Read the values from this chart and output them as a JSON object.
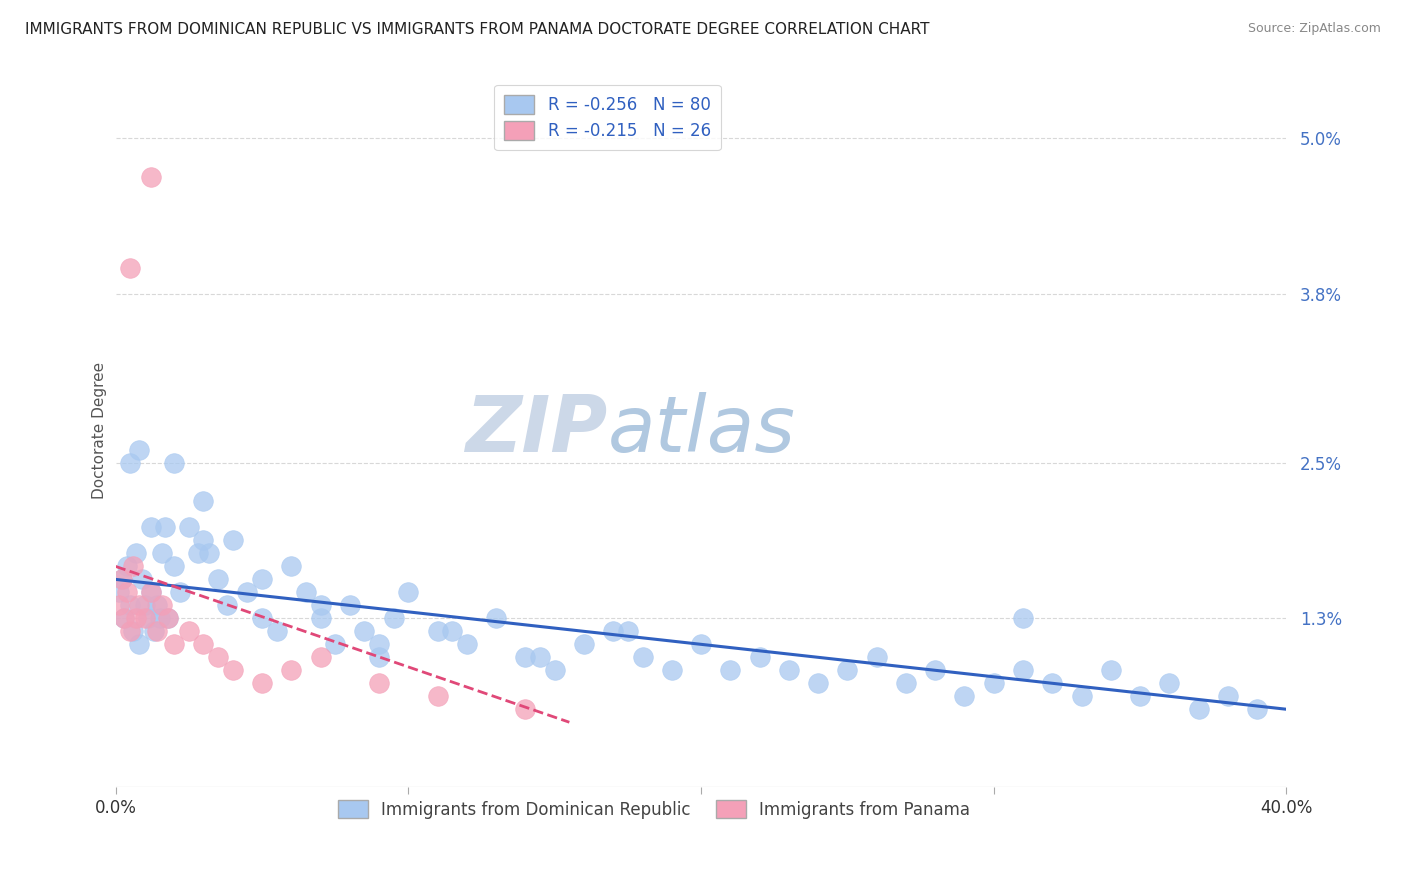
{
  "title": "IMMIGRANTS FROM DOMINICAN REPUBLIC VS IMMIGRANTS FROM PANAMA DOCTORATE DEGREE CORRELATION CHART",
  "source": "Source: ZipAtlas.com",
  "ylabel": "Doctorate Degree",
  "ytick_labels": [
    "",
    "1.3%",
    "2.5%",
    "3.8%",
    "5.0%"
  ],
  "ytick_values": [
    0.0,
    0.013,
    0.025,
    0.038,
    0.05
  ],
  "xlim": [
    0.0,
    0.4
  ],
  "ylim": [
    0.0,
    0.055
  ],
  "legend_blue_label": "R = -0.256   N = 80",
  "legend_pink_label": "R = -0.215   N = 26",
  "legend_bottom_blue": "Immigrants from Dominican Republic",
  "legend_bottom_pink": "Immigrants from Panama",
  "blue_color": "#a8c8f0",
  "pink_color": "#f4a0b8",
  "line_blue": "#3060c0",
  "line_pink": "#e04878",
  "watermark_color": "#ccd8e8",
  "grid_color": "#d8d8d8",
  "background_color": "#ffffff",
  "blue_x": [
    0.001,
    0.002,
    0.003,
    0.004,
    0.005,
    0.006,
    0.007,
    0.008,
    0.009,
    0.01,
    0.011,
    0.012,
    0.013,
    0.014,
    0.015,
    0.016,
    0.017,
    0.018,
    0.02,
    0.022,
    0.025,
    0.028,
    0.03,
    0.032,
    0.035,
    0.038,
    0.04,
    0.045,
    0.05,
    0.055,
    0.06,
    0.065,
    0.07,
    0.075,
    0.08,
    0.085,
    0.09,
    0.095,
    0.1,
    0.11,
    0.12,
    0.13,
    0.14,
    0.15,
    0.16,
    0.17,
    0.18,
    0.19,
    0.2,
    0.21,
    0.22,
    0.23,
    0.24,
    0.25,
    0.26,
    0.27,
    0.28,
    0.29,
    0.3,
    0.31,
    0.32,
    0.33,
    0.34,
    0.35,
    0.36,
    0.37,
    0.38,
    0.39,
    0.005,
    0.008,
    0.012,
    0.02,
    0.03,
    0.05,
    0.07,
    0.09,
    0.115,
    0.145,
    0.175,
    0.31
  ],
  "blue_y": [
    0.015,
    0.016,
    0.013,
    0.017,
    0.014,
    0.012,
    0.018,
    0.011,
    0.016,
    0.014,
    0.013,
    0.015,
    0.012,
    0.014,
    0.013,
    0.018,
    0.02,
    0.013,
    0.017,
    0.015,
    0.02,
    0.018,
    0.022,
    0.018,
    0.016,
    0.014,
    0.019,
    0.015,
    0.013,
    0.012,
    0.017,
    0.015,
    0.013,
    0.011,
    0.014,
    0.012,
    0.01,
    0.013,
    0.015,
    0.012,
    0.011,
    0.013,
    0.01,
    0.009,
    0.011,
    0.012,
    0.01,
    0.009,
    0.011,
    0.009,
    0.01,
    0.009,
    0.008,
    0.009,
    0.01,
    0.008,
    0.009,
    0.007,
    0.008,
    0.009,
    0.008,
    0.007,
    0.009,
    0.007,
    0.008,
    0.006,
    0.007,
    0.006,
    0.025,
    0.026,
    0.02,
    0.025,
    0.019,
    0.016,
    0.014,
    0.011,
    0.012,
    0.01,
    0.012,
    0.013
  ],
  "pink_x": [
    0.001,
    0.002,
    0.003,
    0.004,
    0.005,
    0.006,
    0.007,
    0.008,
    0.01,
    0.012,
    0.014,
    0.016,
    0.018,
    0.02,
    0.025,
    0.03,
    0.035,
    0.04,
    0.05,
    0.06,
    0.07,
    0.09,
    0.11,
    0.14,
    0.005,
    0.012
  ],
  "pink_y": [
    0.014,
    0.016,
    0.013,
    0.015,
    0.012,
    0.017,
    0.013,
    0.014,
    0.013,
    0.015,
    0.012,
    0.014,
    0.013,
    0.011,
    0.012,
    0.011,
    0.01,
    0.009,
    0.008,
    0.009,
    0.01,
    0.008,
    0.007,
    0.006,
    0.04,
    0.047
  ],
  "blue_line_x": [
    0.0,
    0.4
  ],
  "blue_line_y": [
    0.016,
    0.006
  ],
  "pink_line_x": [
    0.0,
    0.155
  ],
  "pink_line_y": [
    0.017,
    0.005
  ]
}
